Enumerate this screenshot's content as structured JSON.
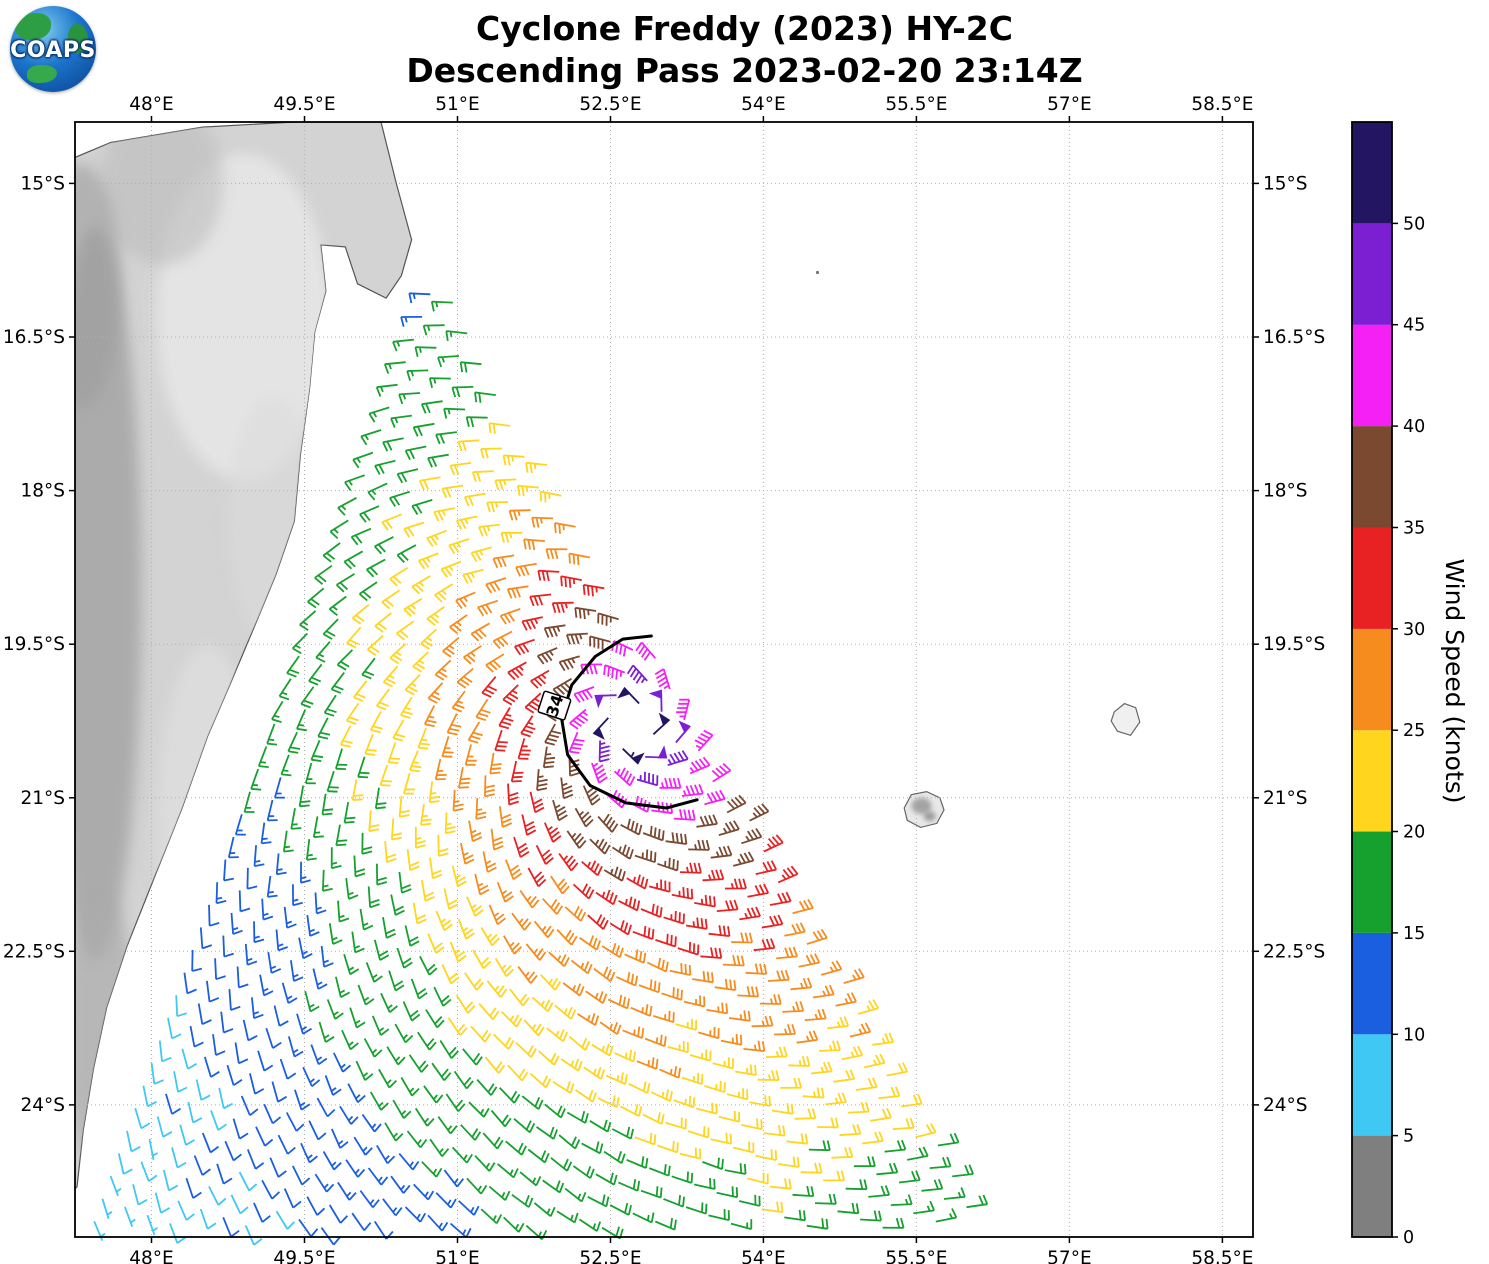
{
  "header": {
    "logo_text": "COAPS",
    "title_line1": "Cyclone Freddy (2023) HY-2C",
    "title_line2": "Descending Pass 2023-02-20 23:14Z"
  },
  "chart_data": {
    "type": "windbarb-map",
    "title": "Cyclone Freddy (2023) HY-2C",
    "subtitle": "Descending Pass 2023-02-20 23:14Z",
    "satellite": "HY-2C",
    "storm_name": "Freddy",
    "pass": "Descending",
    "valid_time": "2023-02-20 23:14Z",
    "x_axis": {
      "unit": "°E",
      "range": [
        47.25,
        58.8
      ],
      "tick_values": [
        48,
        49.5,
        51,
        52.5,
        54,
        55.5,
        57,
        58.5
      ],
      "tick_labels": [
        "48°E",
        "49.5°E",
        "51°E",
        "52.5°E",
        "54°E",
        "55.5°E",
        "57°E",
        "58.5°E"
      ]
    },
    "y_axis": {
      "unit": "°S",
      "range": [
        14.4,
        25.29
      ],
      "tick_values": [
        15,
        16.5,
        18,
        19.5,
        21,
        22.5,
        24
      ],
      "tick_labels": [
        "15°S",
        "16.5°S",
        "18°S",
        "19.5°S",
        "21°S",
        "22.5°S",
        "24°S"
      ]
    },
    "colorbar": {
      "label": "Wind Speed (knots)",
      "range": [
        0,
        55
      ],
      "tick_values": [
        0,
        5,
        10,
        15,
        20,
        25,
        30,
        35,
        40,
        45,
        50
      ],
      "segments": [
        {
          "min": 0,
          "max": 5,
          "color": "#7f7f7f"
        },
        {
          "min": 5,
          "max": 10,
          "color": "#3fc8f4"
        },
        {
          "min": 10,
          "max": 15,
          "color": "#1a5fe0"
        },
        {
          "min": 15,
          "max": 20,
          "color": "#16a12f"
        },
        {
          "min": 20,
          "max": 25,
          "color": "#ffd51e"
        },
        {
          "min": 25,
          "max": 30,
          "color": "#f78c1e"
        },
        {
          "min": 30,
          "max": 35,
          "color": "#e82222"
        },
        {
          "min": 35,
          "max": 40,
          "color": "#7a4930"
        },
        {
          "min": 40,
          "max": 45,
          "color": "#f520f5"
        },
        {
          "min": 45,
          "max": 50,
          "color": "#7c1ed1"
        },
        {
          "min": 50,
          "max": 55,
          "color": "#241563"
        }
      ]
    },
    "wind_field": {
      "center": [
        52.7,
        20.3
      ],
      "max_observed_kt": 52,
      "contour_label": "34",
      "contour_label_pos": [
        51.95,
        20.1
      ],
      "contour_label_rotation": -72,
      "contour_points": [
        [
          52.9,
          19.42
        ],
        [
          52.62,
          19.45
        ],
        [
          52.35,
          19.62
        ],
        [
          52.12,
          19.9
        ],
        [
          52.02,
          20.22
        ],
        [
          52.08,
          20.58
        ],
        [
          52.3,
          20.88
        ],
        [
          52.65,
          21.05
        ],
        [
          53.05,
          21.1
        ],
        [
          53.35,
          21.02
        ]
      ],
      "grid": {
        "spacing_deg": 0.235,
        "rotation_deg": 20,
        "extent": 34
      },
      "model": {
        "max_base_kt": 54,
        "core_boost_kt": 6,
        "core_radius_deg": 0.35,
        "decay_scale_deg": 3.3,
        "decay_power": 0.8,
        "inflow_deg": 25,
        "compress_dir": [
          -0.92,
          0.38
        ],
        "compress_amount": 0.25,
        "expand_dir": [
          0.5,
          0.866
        ],
        "expand_amount": 0.45,
        "noise_kt": 1.3,
        "noise_dir_deg": 5
      },
      "swath_polygon": [
        [
          50.75,
          15.78
        ],
        [
          56.35,
          25.5
        ],
        [
          47.15,
          25.5
        ]
      ]
    },
    "geo": {
      "madagascar": [
        [
          50.25,
          14.4
        ],
        [
          50.4,
          15.0
        ],
        [
          50.55,
          15.55
        ],
        [
          50.45,
          15.9
        ],
        [
          50.3,
          16.12
        ],
        [
          50.02,
          15.98
        ],
        [
          49.9,
          15.62
        ],
        [
          49.66,
          15.6
        ],
        [
          49.71,
          16.05
        ],
        [
          49.6,
          16.45
        ],
        [
          49.55,
          17.0
        ],
        [
          49.46,
          17.65
        ],
        [
          49.4,
          18.3
        ],
        [
          49.22,
          18.82
        ],
        [
          49.0,
          19.35
        ],
        [
          48.78,
          19.87
        ],
        [
          48.55,
          20.4
        ],
        [
          48.3,
          21.1
        ],
        [
          48.02,
          21.8
        ],
        [
          47.76,
          22.45
        ],
        [
          47.56,
          23.05
        ],
        [
          47.43,
          23.65
        ],
        [
          47.33,
          24.25
        ],
        [
          47.27,
          24.8
        ],
        [
          47.0,
          25.05
        ],
        [
          47.0,
          14.85
        ],
        [
          47.6,
          14.6
        ],
        [
          48.5,
          14.45
        ],
        [
          49.4,
          14.4
        ]
      ],
      "terrain_patches": [
        [
          47.45,
          19.0,
          0.45,
          3.6,
          "#a2a2a2",
          0.8
        ],
        [
          47.5,
          23.3,
          0.35,
          1.4,
          "#ababab",
          0.7
        ],
        [
          48.9,
          16.3,
          0.85,
          1.6,
          "#e6e6e6",
          0.9
        ],
        [
          48.1,
          15.0,
          0.6,
          0.8,
          "#bdbdbd",
          0.6
        ],
        [
          48.55,
          21.3,
          0.5,
          1.8,
          "#e0e0e0",
          0.7
        ],
        [
          49.2,
          18.3,
          0.45,
          1.2,
          "#dcdcdc",
          0.6
        ],
        [
          47.3,
          16.0,
          0.4,
          1.2,
          "#9d9d9d",
          0.6
        ]
      ],
      "reunion": [
        [
          55.38,
          21.1
        ],
        [
          55.45,
          20.97
        ],
        [
          55.6,
          20.94
        ],
        [
          55.73,
          21.0
        ],
        [
          55.77,
          21.12
        ],
        [
          55.7,
          21.25
        ],
        [
          55.54,
          21.29
        ],
        [
          55.41,
          21.22
        ]
      ],
      "mauritius": [
        [
          57.44,
          20.16
        ],
        [
          57.54,
          20.08
        ],
        [
          57.65,
          20.12
        ],
        [
          57.69,
          20.26
        ],
        [
          57.6,
          20.39
        ],
        [
          57.47,
          20.35
        ],
        [
          57.41,
          20.25
        ]
      ],
      "small_island_dot": [
        54.53,
        15.87
      ],
      "coast_min_lon": [
        [
          14.4,
          50.3
        ],
        [
          15.0,
          50.45
        ],
        [
          15.6,
          50.6
        ],
        [
          16.1,
          50.35
        ],
        [
          16.5,
          49.66
        ],
        [
          17.0,
          49.6
        ],
        [
          18.0,
          49.45
        ],
        [
          19.0,
          49.1
        ],
        [
          20.0,
          48.66
        ],
        [
          21.0,
          48.34
        ],
        [
          22.0,
          47.9
        ],
        [
          23.0,
          47.6
        ],
        [
          24.0,
          47.4
        ],
        [
          25.3,
          47.3
        ]
      ]
    }
  }
}
